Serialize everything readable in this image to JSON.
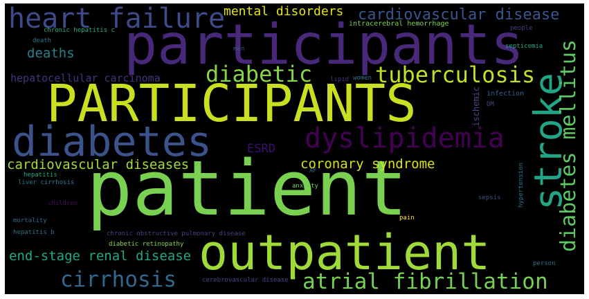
{
  "words": [
    {
      "id": "patient",
      "text": "patient",
      "color": "#7ad151"
    },
    {
      "id": "PARTICIPANTS",
      "text": "PARTICIPANTS",
      "color": "#c8e020"
    },
    {
      "id": "participants",
      "text": "participants",
      "color": "#482878"
    },
    {
      "id": "outpatient",
      "text": "outpatient",
      "color": "#a0da39"
    },
    {
      "id": "diabetes",
      "text": "diabetes",
      "color": "#3b528b"
    },
    {
      "id": "stroke",
      "text": "stroke",
      "color": "#21a585"
    },
    {
      "id": "heart-failure",
      "text": "heart failure",
      "color": "#3e4a89"
    },
    {
      "id": "dyslipidemia",
      "text": "dyslipidemia",
      "color": "#440154"
    },
    {
      "id": "atrial-fibrillation",
      "text": "atrial fibrillation",
      "color": "#75d054"
    },
    {
      "id": "diabetes-mellitus",
      "text": "diabetes mellitus",
      "color": "#5ec962"
    },
    {
      "id": "tuberculosis",
      "text": "tuberculosis",
      "color": "#c2df23"
    },
    {
      "id": "diabetic",
      "text": "diabetic",
      "color": "#86d549"
    },
    {
      "id": "cirrhosis",
      "text": "cirrhosis",
      "color": "#31688e"
    },
    {
      "id": "cardiovascular-disease",
      "text": "cardiovascular disease",
      "color": "#39568c"
    },
    {
      "id": "cardiovascular-diseases",
      "text": "cardiovascular diseases",
      "color": "#a5db36"
    },
    {
      "id": "end-stage-renal-disease",
      "text": "end-stage renal disease",
      "color": "#22a884"
    },
    {
      "id": "coronary-syndrome",
      "text": "coronary syndrome",
      "color": "#d8e219"
    },
    {
      "id": "mental-disorders",
      "text": "mental disorders",
      "color": "#e5e419"
    },
    {
      "id": "deaths",
      "text": "deaths",
      "color": "#26828e"
    },
    {
      "id": "ESRD",
      "text": "ESRD",
      "color": "#3b0f70"
    },
    {
      "id": "hepatocellular-carcinoma",
      "text": "hepatocellular carcinoma",
      "color": "#46337e"
    },
    {
      "id": "chronic-hepatitis-c",
      "text": "chronic hepatitis c",
      "color": "#29af7f"
    },
    {
      "id": "intracerebral-hemorrhage",
      "text": "intracerebral hemorrhage",
      "color": "#7fd34e"
    },
    {
      "id": "death",
      "text": "death",
      "color": "#2c728e"
    },
    {
      "id": "men",
      "text": "men",
      "color": "#3b528b"
    },
    {
      "id": "people",
      "text": "people",
      "color": "#424086"
    },
    {
      "id": "septicemia",
      "text": "septicemia",
      "color": "#22a785"
    },
    {
      "id": "lipid",
      "text": "lipid",
      "color": "#46327e"
    },
    {
      "id": "women",
      "text": "women",
      "color": "#2a788e"
    },
    {
      "id": "ischemic",
      "text": "ischemic",
      "color": "#3e4989"
    },
    {
      "id": "infection",
      "text": "infection",
      "color": "#355f8d"
    },
    {
      "id": "DM",
      "text": "DM",
      "color": "#3e4989"
    },
    {
      "id": "hepatitis",
      "text": "hepatitis",
      "color": "#22a785"
    },
    {
      "id": "liver-cirrhosis",
      "text": "liver cirrhosis",
      "color": "#297b8e"
    },
    {
      "id": "AF",
      "text": "AF",
      "color": "#2e6e8e"
    },
    {
      "id": "anxiety",
      "text": "anxiety",
      "color": "#6ccd5a"
    },
    {
      "id": "hypertension",
      "text": "hypertension",
      "color": "#2c738e"
    },
    {
      "id": "children",
      "text": "children",
      "color": "#470e61"
    },
    {
      "id": "sepsis",
      "text": "sepsis",
      "color": "#3b528b"
    },
    {
      "id": "mortality",
      "text": "mortality",
      "color": "#31688e"
    },
    {
      "id": "pain",
      "text": "pain",
      "color": "#fde725"
    },
    {
      "id": "hepatitis-b",
      "text": "hepatitis b",
      "color": "#2d708e"
    },
    {
      "id": "chronic-obstructive-pulmonary-disease",
      "text": "chronic obstructive pulmonary disease",
      "color": "#414487"
    },
    {
      "id": "diabetic-retinopathy",
      "text": "diabetic retinopathy",
      "color": "#86d549"
    },
    {
      "id": "person",
      "text": "person",
      "color": "#2c728e"
    },
    {
      "id": "cerebrovascular-disease",
      "text": "cerebrovascular disease",
      "color": "#3e4989"
    }
  ]
}
